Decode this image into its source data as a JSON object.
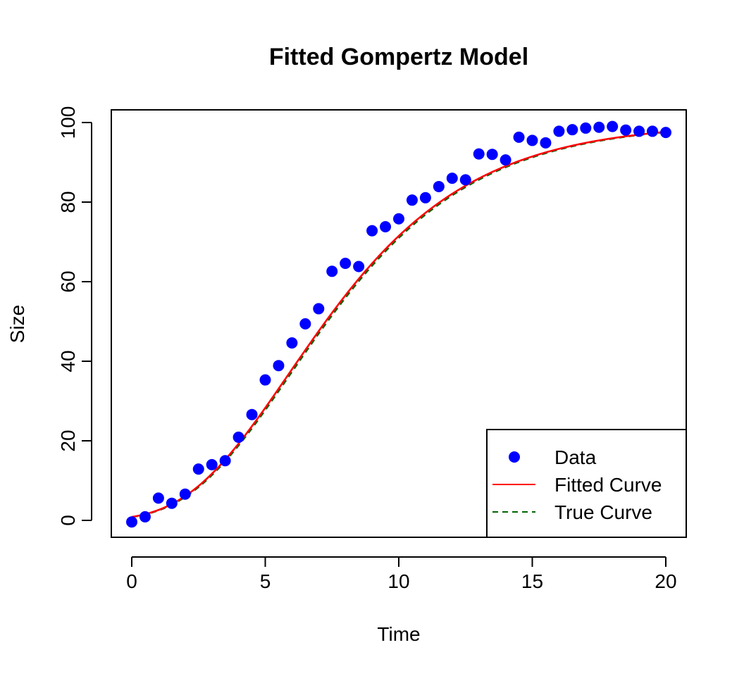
{
  "chart_data": {
    "type": "scatter",
    "title": "Fitted Gompertz Model",
    "xlabel": "Time",
    "ylabel": "Size",
    "xlim": [
      0,
      20
    ],
    "ylim": [
      0,
      100
    ],
    "xticks": [
      0,
      5,
      10,
      15,
      20
    ],
    "yticks": [
      0,
      20,
      40,
      60,
      80,
      100
    ],
    "grid": false,
    "legend_position": "bottom-right",
    "series": [
      {
        "name": "Data",
        "kind": "points",
        "color": "#0000ff",
        "x": [
          0,
          0.5,
          1,
          1.5,
          2,
          2.5,
          3,
          3.5,
          4,
          4.5,
          5,
          5.5,
          6,
          6.5,
          7,
          7.5,
          8,
          8.5,
          9,
          9.5,
          10,
          10.5,
          11,
          11.5,
          12,
          12.5,
          13,
          13.5,
          14,
          14.5,
          15,
          15.5,
          16,
          16.5,
          17,
          17.5,
          18,
          18.5,
          19,
          19.5,
          20
        ],
        "y": [
          -0.4,
          0.9,
          5.6,
          4.3,
          6.6,
          12.9,
          14.0,
          15.0,
          20.9,
          26.6,
          35.3,
          38.9,
          44.6,
          49.4,
          53.2,
          62.6,
          64.6,
          63.8,
          72.8,
          73.8,
          75.8,
          80.5,
          81.1,
          83.9,
          86.0,
          85.6,
          92.1,
          92.0,
          90.6,
          96.3,
          95.5,
          94.9,
          97.8,
          98.2,
          98.6,
          98.8,
          99.0,
          98.1,
          97.8,
          97.8,
          97.5
        ]
      },
      {
        "name": "Fitted Curve",
        "kind": "line",
        "color": "#ff0000",
        "dash": "solid",
        "model": {
          "a": 100.0,
          "b": 4.75,
          "c": 0.265
        }
      },
      {
        "name": "True Curve",
        "kind": "line",
        "color": "#006400",
        "dash": "dashed",
        "model": {
          "a": 100.0,
          "b": 4.8,
          "c": 0.264
        }
      }
    ]
  }
}
